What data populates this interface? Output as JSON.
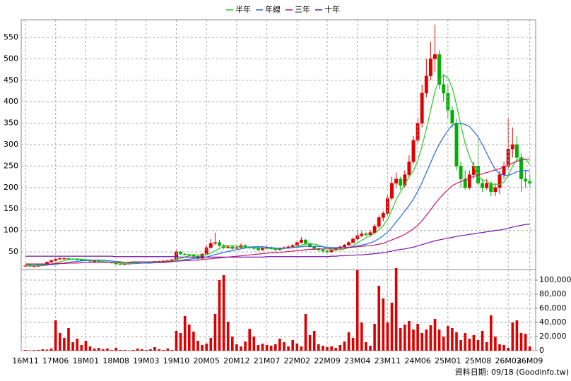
{
  "chart_data": [
    {
      "type": "candlestick",
      "up_color": "#e00000",
      "down_color": "#00b000",
      "grid": true,
      "legend": "top",
      "ylim": [
        9,
        591
      ],
      "yticks": [
        50,
        100,
        150,
        200,
        250,
        300,
        350,
        400,
        450,
        500,
        550
      ],
      "open": [
        17,
        18,
        17,
        17,
        18,
        20,
        26,
        30,
        33,
        35,
        35,
        34,
        33,
        32,
        31,
        30,
        29,
        29,
        28,
        27,
        26,
        24,
        22,
        21,
        22,
        23,
        24,
        25,
        25,
        26,
        27,
        28,
        28,
        29,
        30,
        32,
        50,
        45,
        44,
        42,
        40,
        35,
        45,
        60,
        70,
        72,
        65,
        60,
        62,
        58,
        60,
        65,
        62,
        60,
        58,
        55,
        58,
        60,
        57,
        55,
        58,
        60,
        62,
        65,
        72,
        78,
        70,
        62,
        58,
        55,
        52,
        50,
        54,
        58,
        62,
        66,
        72,
        80,
        88,
        92,
        90,
        95,
        110,
        130,
        140,
        175,
        210,
        220,
        205,
        230,
        260,
        310,
        350,
        420,
        460,
        500,
        510,
        440,
        420,
        380,
        350,
        250,
        220,
        200,
        230,
        250,
        210,
        200,
        210,
        190,
        200,
        230,
        250,
        290,
        300,
        270,
        220,
        215
      ],
      "high": [
        19,
        19,
        18,
        19,
        21,
        28,
        32,
        36,
        38,
        37,
        36,
        35,
        34,
        33,
        32,
        31,
        30,
        30,
        29,
        28,
        27,
        25,
        23,
        23,
        24,
        25,
        26,
        26,
        27,
        28,
        29,
        30,
        30,
        31,
        34,
        53,
        52,
        48,
        46,
        44,
        42,
        47,
        65,
        80,
        95,
        78,
        68,
        66,
        64,
        65,
        70,
        68,
        64,
        62,
        60,
        62,
        66,
        63,
        59,
        60,
        63,
        65,
        68,
        76,
        85,
        80,
        72,
        64,
        60,
        57,
        54,
        56,
        60,
        64,
        68,
        75,
        84,
        100,
        98,
        96,
        100,
        115,
        135,
        145,
        185,
        225,
        235,
        225,
        240,
        275,
        320,
        360,
        440,
        500,
        540,
        580,
        520,
        460,
        440,
        390,
        360,
        260,
        240,
        240,
        260,
        310,
        220,
        220,
        215,
        210,
        240,
        260,
        360,
        340,
        320,
        280,
        240,
        230
      ],
      "low": [
        16,
        16,
        16,
        16,
        17,
        19,
        25,
        29,
        32,
        33,
        32,
        31,
        30,
        29,
        28,
        27,
        27,
        26,
        25,
        24,
        23,
        20,
        20,
        20,
        21,
        22,
        23,
        24,
        24,
        25,
        26,
        27,
        27,
        28,
        29,
        31,
        43,
        42,
        40,
        36,
        30,
        33,
        44,
        58,
        66,
        62,
        56,
        57,
        55,
        56,
        58,
        58,
        56,
        54,
        52,
        53,
        56,
        54,
        51,
        53,
        56,
        58,
        60,
        63,
        70,
        66,
        60,
        55,
        52,
        48,
        46,
        48,
        52,
        56,
        60,
        64,
        70,
        78,
        84,
        86,
        86,
        92,
        105,
        122,
        135,
        170,
        200,
        195,
        200,
        225,
        255,
        300,
        340,
        410,
        450,
        470,
        430,
        400,
        360,
        340,
        240,
        200,
        195,
        195,
        220,
        200,
        190,
        195,
        180,
        180,
        185,
        220,
        240,
        270,
        260,
        190,
        200,
        200
      ],
      "close": [
        18,
        17,
        17,
        18,
        20,
        26,
        30,
        33,
        35,
        35,
        34,
        33,
        32,
        31,
        30,
        29,
        29,
        28,
        27,
        26,
        24,
        22,
        21,
        22,
        23,
        24,
        25,
        25,
        26,
        27,
        28,
        28,
        29,
        30,
        32,
        50,
        45,
        44,
        42,
        40,
        35,
        45,
        60,
        70,
        72,
        65,
        60,
        62,
        58,
        60,
        65,
        62,
        60,
        58,
        55,
        58,
        60,
        57,
        55,
        58,
        60,
        62,
        65,
        72,
        78,
        70,
        62,
        58,
        55,
        52,
        50,
        54,
        58,
        62,
        66,
        72,
        80,
        88,
        92,
        90,
        95,
        110,
        130,
        140,
        175,
        210,
        220,
        205,
        230,
        260,
        310,
        350,
        420,
        460,
        500,
        510,
        440,
        420,
        380,
        350,
        250,
        220,
        200,
        230,
        250,
        210,
        200,
        210,
        190,
        200,
        230,
        250,
        290,
        300,
        270,
        220,
        215,
        210
      ],
      "series": [
        {
          "name": "半年",
          "color": "#22cc22",
          "values": [
            20,
            19,
            18,
            18,
            18,
            19,
            21,
            24,
            27,
            30,
            32,
            33,
            34,
            33,
            32,
            31,
            30,
            29,
            28,
            27,
            26,
            25,
            24,
            23,
            22,
            23,
            23,
            24,
            25,
            25,
            26,
            27,
            27,
            28,
            29,
            32,
            35,
            38,
            41,
            44,
            43,
            42,
            43,
            47,
            53,
            58,
            63,
            65,
            65,
            63,
            62,
            61,
            61,
            60,
            60,
            59,
            58,
            58,
            57,
            57,
            58,
            59,
            60,
            62,
            66,
            68,
            69,
            68,
            66,
            62,
            58,
            55,
            55,
            55,
            57,
            60,
            65,
            71,
            77,
            83,
            88,
            93,
            101,
            111,
            126,
            147,
            172,
            190,
            207,
            225,
            239,
            263,
            296,
            337,
            380,
            425,
            450,
            463,
            455,
            433,
            393,
            345,
            303,
            272,
            250,
            227,
            218,
            215,
            207,
            208,
            207,
            213,
            228,
            250,
            265,
            268,
            266,
            254
          ]
        },
        {
          "name": "年線",
          "color": "#2266ee",
          "values": [
            22,
            21,
            21,
            20,
            20,
            20,
            20,
            21,
            23,
            24,
            26,
            27,
            28,
            29,
            30,
            31,
            31,
            31,
            31,
            30,
            29,
            28,
            27,
            26,
            25,
            25,
            24,
            24,
            24,
            24,
            25,
            25,
            25,
            26,
            27,
            29,
            30,
            32,
            33,
            35,
            35,
            36,
            38,
            41,
            44,
            46,
            49,
            51,
            53,
            55,
            57,
            59,
            61,
            62,
            62,
            62,
            61,
            60,
            59,
            59,
            59,
            59,
            60,
            61,
            62,
            63,
            63,
            63,
            63,
            62,
            61,
            60,
            60,
            60,
            60,
            61,
            62,
            64,
            66,
            68,
            71,
            75,
            81,
            88,
            96,
            107,
            120,
            132,
            145,
            158,
            173,
            191,
            212,
            235,
            258,
            281,
            301,
            318,
            333,
            345,
            349,
            349,
            347,
            342,
            331,
            318,
            300,
            280,
            260,
            242,
            232,
            229,
            228,
            232,
            237,
            238,
            240,
            239
          ]
        },
        {
          "name": "三年",
          "color": "#cc1166",
          "values": [
            22,
            22,
            22,
            22,
            22,
            22,
            22,
            23,
            23,
            23,
            24,
            24,
            24,
            25,
            25,
            25,
            25,
            26,
            26,
            26,
            26,
            26,
            26,
            26,
            26,
            27,
            27,
            27,
            27,
            27,
            27,
            27,
            27,
            27,
            28,
            28,
            29,
            30,
            30,
            31,
            31,
            32,
            33,
            34,
            35,
            36,
            37,
            38,
            39,
            40,
            41,
            42,
            43,
            44,
            45,
            46,
            47,
            48,
            48,
            49,
            50,
            51,
            52,
            53,
            54,
            55,
            56,
            56,
            57,
            57,
            57,
            58,
            58,
            59,
            59,
            60,
            61,
            62,
            63,
            64,
            65,
            66,
            68,
            70,
            74,
            78,
            82,
            86,
            91,
            97,
            104,
            112,
            123,
            135,
            148,
            162,
            174,
            185,
            195,
            204,
            210,
            214,
            218,
            222,
            226,
            229,
            232,
            235,
            238,
            241,
            244,
            248,
            252,
            257,
            261,
            264,
            266,
            267
          ]
        },
        {
          "name": "十年",
          "color": "#7711aa",
          "values": [
            40,
            40,
            40,
            40,
            40,
            40,
            40,
            40,
            40,
            40,
            40,
            40,
            40,
            40,
            40,
            40,
            40,
            40,
            40,
            40,
            40,
            39,
            39,
            39,
            39,
            39,
            39,
            39,
            39,
            39,
            39,
            39,
            39,
            39,
            39,
            39,
            38,
            38,
            38,
            38,
            38,
            38,
            38,
            38,
            38,
            38,
            38,
            38,
            38,
            38,
            38,
            38,
            38,
            38,
            38,
            38,
            39,
            39,
            39,
            39,
            39,
            39,
            39,
            39,
            39,
            39,
            39,
            39,
            39,
            39,
            39,
            40,
            40,
            41,
            41,
            42,
            42,
            43,
            43,
            44,
            45,
            46,
            47,
            48,
            50,
            52,
            54,
            56,
            57,
            59,
            61,
            64,
            67,
            70,
            73,
            76,
            78,
            80,
            82,
            84,
            86,
            88,
            89,
            91,
            92,
            94,
            95,
            97,
            98,
            100,
            101,
            103,
            105,
            108,
            110,
            112,
            114,
            115
          ]
        }
      ]
    },
    {
      "type": "bar",
      "color": "#dd0000",
      "grid": true,
      "ylim": [
        0,
        117000
      ],
      "yticks": [
        0,
        {
          "value": 20000,
          "label": "20,000"
        },
        {
          "value": 40000,
          "label": "40,000"
        },
        {
          "value": 60000,
          "label": "60,000"
        },
        {
          "value": 80000,
          "label": "80,000"
        },
        {
          "value": 100000,
          "label": "100,000"
        }
      ],
      "categories": [
        "16M11",
        null,
        null,
        null,
        null,
        null,
        null,
        "17M06",
        null,
        null,
        null,
        null,
        null,
        null,
        "18M01",
        null,
        null,
        null,
        null,
        null,
        null,
        "18M08",
        null,
        null,
        null,
        null,
        null,
        null,
        "19M03",
        null,
        null,
        null,
        null,
        null,
        null,
        "19M10",
        null,
        null,
        null,
        null,
        null,
        null,
        "20M05",
        null,
        null,
        null,
        null,
        null,
        null,
        "20M12",
        null,
        null,
        null,
        null,
        null,
        null,
        "21M07",
        null,
        null,
        null,
        null,
        null,
        null,
        "22M02",
        null,
        null,
        null,
        null,
        null,
        null,
        "22M09",
        null,
        null,
        null,
        null,
        null,
        null,
        "23M04",
        null,
        null,
        null,
        null,
        null,
        null,
        "23M11",
        null,
        null,
        null,
        null,
        null,
        null,
        "24M06",
        null,
        null,
        null,
        null,
        null,
        null,
        "25M01",
        null,
        null,
        null,
        null,
        null,
        null,
        "25M08",
        null,
        null,
        null,
        null,
        null,
        null,
        "26M03",
        null,
        null,
        null,
        null,
        "26M09"
      ],
      "values": [
        1000,
        500,
        800,
        1000,
        2000,
        1500,
        3000,
        43000,
        25000,
        18000,
        32000,
        12000,
        17000,
        8000,
        14000,
        6000,
        3000,
        4000,
        2000,
        3000,
        1000,
        4000,
        1000,
        1000,
        500,
        1000,
        3000,
        2000,
        1000,
        2000,
        5000,
        2000,
        1000,
        3000,
        1000,
        28000,
        25000,
        49000,
        37000,
        27000,
        14000,
        8000,
        10000,
        18000,
        52000,
        100000,
        107000,
        41000,
        20000,
        9000,
        6000,
        13000,
        31000,
        20000,
        8000,
        10000,
        8000,
        7000,
        9000,
        17000,
        12000,
        6000,
        15000,
        10000,
        6000,
        52000,
        22000,
        28000,
        9000,
        7000,
        5000,
        6000,
        4000,
        8000,
        13000,
        26000,
        18000,
        114000,
        40000,
        12000,
        7000,
        38000,
        92000,
        74000,
        40000,
        68000,
        117000,
        32000,
        37000,
        42000,
        30000,
        38000,
        25000,
        30000,
        36000,
        45000,
        30000,
        20000,
        35000,
        32000,
        26000,
        15000,
        25000,
        17000,
        22000,
        15000,
        28000,
        12000,
        50000,
        20000,
        9000,
        8000,
        4000,
        40000,
        43000,
        25000,
        24000,
        6000
      ]
    }
  ],
  "footer": "資料日期: 09/18 (Goodinfo.tw)"
}
